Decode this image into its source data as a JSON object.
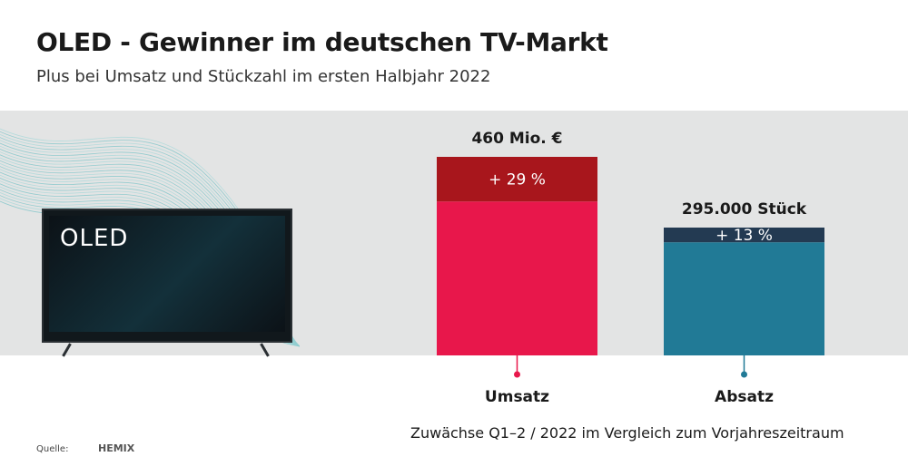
{
  "title": "OLED - Gewinner im deutschen TV-Markt",
  "subtitle": "Plus bei Umsatz und Stückzahl im ersten Halbjahr 2022",
  "tv_label": "OLED",
  "footnote": "Zuwächse Q1–2 / 2022 im Vergleich zum Vorjahreszeitraum",
  "source_label": "Quelle:",
  "source_brand": "HEMIX",
  "chart_data": {
    "type": "bar",
    "categories": [
      "Umsatz",
      "Absatz"
    ],
    "totals": [
      "460 Mio. €",
      "295.000 Stück"
    ],
    "growth_labels": [
      "+ 29 %",
      "+ 13 %"
    ],
    "growth_percent": [
      29,
      13
    ],
    "colors": {
      "umsatz_base": "#e8174b",
      "umsatz_growth": "#a8161c",
      "absatz_base": "#217a96",
      "absatz_growth": "#233a52",
      "umsatz_marker": "#e8174b",
      "absatz_marker": "#217a96"
    }
  }
}
